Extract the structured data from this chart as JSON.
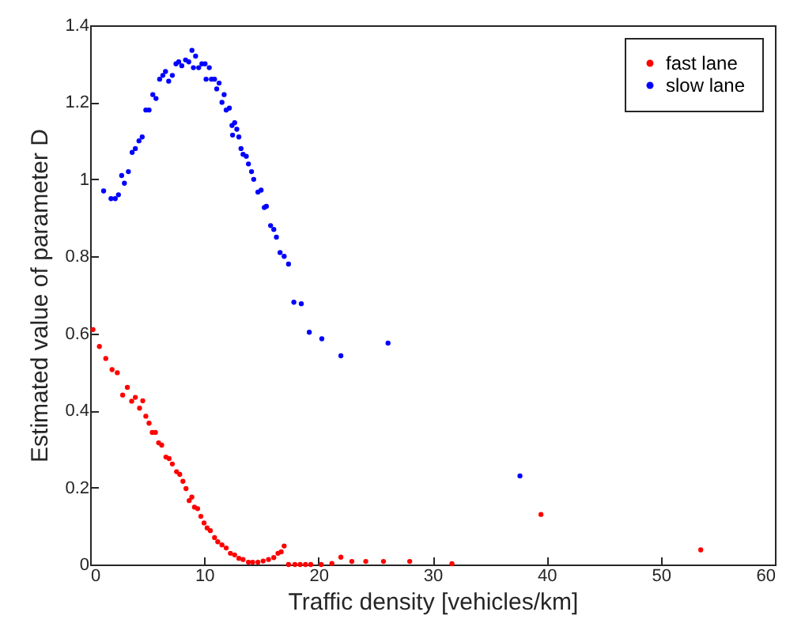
{
  "chart_data": {
    "type": "scatter",
    "xlabel": "Traffic density [vehicles/km]",
    "ylabel": "Estimated value of parameter D",
    "xlim": [
      0,
      60
    ],
    "ylim": [
      0,
      1.4
    ],
    "xticks": [
      0,
      10,
      20,
      30,
      40,
      50,
      60
    ],
    "yticks": [
      0,
      0.2,
      0.4,
      0.6,
      0.8,
      1,
      1.2,
      1.4
    ],
    "grid": false,
    "legend": "top right",
    "marker": "circle",
    "series": [
      {
        "name": "fast lane",
        "color": "#ff0000",
        "x": [
          0.25,
          0.81,
          1.37,
          1.92,
          2.38,
          2.85,
          3.26,
          3.64,
          3.96,
          4.33,
          4.61,
          4.88,
          5.16,
          5.44,
          5.72,
          6.0,
          6.27,
          6.64,
          6.92,
          7.2,
          7.57,
          7.85,
          8.13,
          8.4,
          8.68,
          8.91,
          9.14,
          9.42,
          9.7,
          9.98,
          10.25,
          10.53,
          10.9,
          11.18,
          11.55,
          11.92,
          12.29,
          12.66,
          13.03,
          13.4,
          13.87,
          14.24,
          14.7,
          15.16,
          15.63,
          16.09,
          16.46,
          16.74,
          17.0,
          17.38,
          17.94,
          18.4,
          18.87,
          19.33,
          20.25,
          21.18,
          21.97,
          22.93,
          24.15,
          25.7,
          28.0,
          31.7,
          39.5,
          53.5
        ],
        "values": [
          0.61,
          0.566,
          0.535,
          0.506,
          0.498,
          0.44,
          0.46,
          0.424,
          0.434,
          0.406,
          0.425,
          0.385,
          0.367,
          0.343,
          0.343,
          0.316,
          0.31,
          0.279,
          0.275,
          0.261,
          0.241,
          0.234,
          0.216,
          0.197,
          0.166,
          0.175,
          0.149,
          0.145,
          0.125,
          0.108,
          0.095,
          0.088,
          0.07,
          0.059,
          0.051,
          0.043,
          0.029,
          0.025,
          0.016,
          0.013,
          0.006,
          0.006,
          0.006,
          0.009,
          0.013,
          0.018,
          0.029,
          0.033,
          0.048,
          0,
          0,
          0,
          0,
          0,
          0,
          0.003,
          0.019,
          0.008,
          0.008,
          0.008,
          0.008,
          0.002,
          0.13,
          0.038
        ]
      },
      {
        "name": "slow lane",
        "color": "#0000ff",
        "x": [
          1.18,
          1.83,
          2.2,
          2.48,
          2.76,
          3.0,
          3.35,
          3.68,
          3.96,
          4.28,
          4.56,
          4.88,
          5.16,
          5.49,
          5.77,
          6.09,
          6.37,
          6.6,
          6.88,
          7.2,
          7.52,
          7.76,
          8.03,
          8.36,
          8.64,
          8.92,
          9.24,
          9.05,
          9.51,
          9.79,
          10.07,
          10.16,
          10.44,
          10.63,
          10.9,
          11.09,
          11.3,
          11.55,
          11.74,
          11.92,
          12.2,
          12.43,
          12.66,
          12.85,
          13.03,
          12.48,
          13.22,
          13.4,
          13.68,
          13.87,
          14.14,
          14.33,
          14.7,
          14.98,
          15.26,
          15.44,
          15.81,
          16.09,
          16.32,
          16.64,
          17.0,
          17.38,
          17.85,
          18.5,
          19.2,
          20.3,
          21.97,
          26.1,
          37.66
        ],
        "values": [
          0.97,
          0.95,
          0.95,
          0.96,
          1.01,
          0.99,
          1.02,
          1.07,
          1.08,
          1.1,
          1.11,
          1.18,
          1.18,
          1.22,
          1.21,
          1.26,
          1.27,
          1.28,
          1.255,
          1.27,
          1.3,
          1.305,
          1.295,
          1.31,
          1.305,
          1.335,
          1.32,
          1.29,
          1.29,
          1.3,
          1.3,
          1.26,
          1.29,
          1.26,
          1.26,
          1.235,
          1.25,
          1.2,
          1.22,
          1.18,
          1.185,
          1.14,
          1.147,
          1.13,
          1.11,
          1.115,
          1.08,
          1.065,
          1.06,
          1.04,
          1.02,
          1.0,
          0.967,
          0.972,
          0.927,
          0.93,
          0.88,
          0.87,
          0.85,
          0.81,
          0.8,
          0.78,
          0.681,
          0.677,
          0.603,
          0.586,
          0.542,
          0.575,
          0.23
        ]
      }
    ]
  }
}
